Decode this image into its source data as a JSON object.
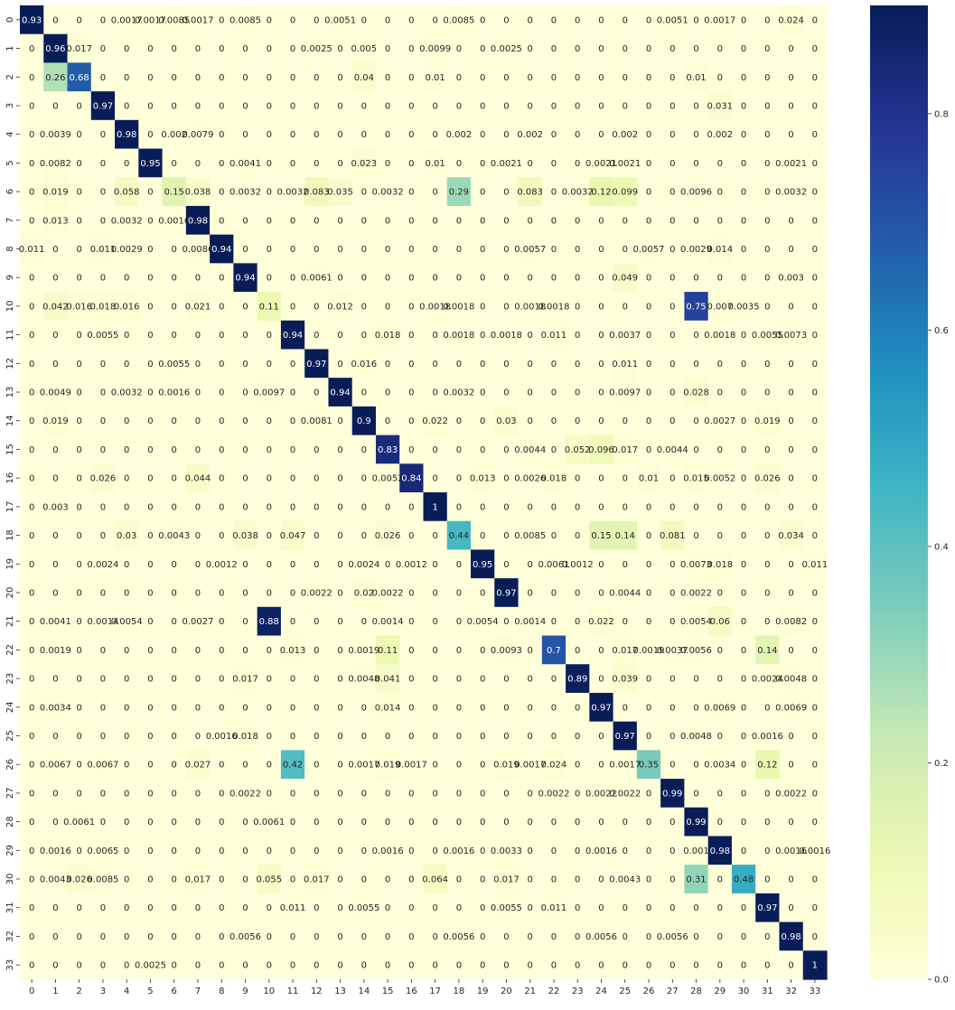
{
  "chart_data": {
    "type": "heatmap",
    "title": "",
    "xlabel": "",
    "ylabel": "",
    "colormap": "YlGnBu",
    "colorbar": {
      "vmin": 0.0,
      "vmax": 0.9,
      "ticks": [
        0.0,
        0.2,
        0.4,
        0.6,
        0.8
      ],
      "tick_labels": [
        "0.0",
        "0.2",
        "0.4",
        "0.6",
        "0.8"
      ]
    },
    "x_tick_labels": [
      "0",
      "1",
      "2",
      "3",
      "4",
      "5",
      "6",
      "7",
      "8",
      "9",
      "10",
      "11",
      "12",
      "13",
      "14",
      "15",
      "16",
      "17",
      "18",
      "19",
      "20",
      "21",
      "22",
      "23",
      "24",
      "25",
      "26",
      "27",
      "28",
      "29",
      "30",
      "31",
      "32",
      "33"
    ],
    "y_tick_labels": [
      "0",
      "1",
      "2",
      "3",
      "4",
      "5",
      "6",
      "7",
      "8",
      "9",
      "10",
      "11",
      "12",
      "13",
      "14",
      "15",
      "16",
      "17",
      "18",
      "19",
      "20",
      "21",
      "22",
      "23",
      "24",
      "25",
      "26",
      "27",
      "28",
      "29",
      "30",
      "31",
      "32",
      "33"
    ],
    "values": [
      [
        0.93,
        0,
        0,
        0,
        0.0017,
        0.0017,
        0.0085,
        0.0017,
        0,
        0.0085,
        0,
        0,
        0,
        0.0051,
        0,
        0,
        0,
        0,
        0.0085,
        0,
        0,
        0,
        0,
        0,
        0,
        0,
        0,
        0.0051,
        0,
        0.0017,
        0,
        0,
        0.024,
        0
      ],
      [
        0,
        0.96,
        0.017,
        0,
        0,
        0,
        0,
        0,
        0,
        0,
        0,
        0,
        0.0025,
        0,
        0.005,
        0,
        0,
        0.0099,
        0,
        0,
        0.0025,
        0,
        0,
        0,
        0,
        0,
        0,
        0,
        0,
        0,
        0,
        0,
        0,
        0
      ],
      [
        0,
        0.26,
        0.68,
        0,
        0,
        0,
        0,
        0,
        0,
        0,
        0,
        0,
        0,
        0,
        0.04,
        0,
        0,
        0.01,
        0,
        0,
        0,
        0,
        0,
        0,
        0,
        0,
        0,
        0,
        0.01,
        0,
        0,
        0,
        0,
        0
      ],
      [
        0,
        0,
        0,
        0.97,
        0,
        0,
        0,
        0,
        0,
        0,
        0,
        0,
        0,
        0,
        0,
        0,
        0,
        0,
        0,
        0,
        0,
        0,
        0,
        0,
        0,
        0,
        0,
        0,
        0,
        0.031,
        0,
        0,
        0,
        0
      ],
      [
        0,
        0.0039,
        0,
        0,
        0.98,
        0,
        0.002,
        0.0079,
        0,
        0,
        0,
        0,
        0,
        0,
        0,
        0,
        0,
        0,
        0.002,
        0,
        0,
        0.002,
        0,
        0,
        0,
        0.002,
        0,
        0,
        0,
        0.002,
        0,
        0,
        0,
        0
      ],
      [
        0,
        0.0082,
        0,
        0,
        0,
        0.95,
        0,
        0,
        0,
        0.0041,
        0,
        0,
        0,
        0,
        0.023,
        0,
        0,
        0.01,
        0,
        0,
        0.0021,
        0,
        0,
        0,
        0.0021,
        0.0021,
        0,
        0,
        0,
        0,
        0,
        0,
        0.0021,
        0
      ],
      [
        0,
        0.019,
        0,
        0,
        0.058,
        0,
        0.15,
        0.038,
        0,
        0.0032,
        0,
        0.0032,
        0.083,
        0.035,
        0,
        0.0032,
        0,
        0,
        0.29,
        0,
        0,
        0.083,
        0,
        0.0032,
        0.12,
        0.099,
        0,
        0,
        0.0096,
        0,
        0,
        0,
        0.0032,
        0
      ],
      [
        0,
        0.013,
        0,
        0,
        0.0032,
        0,
        0.0016,
        0.98,
        0,
        0,
        0,
        0,
        0,
        0,
        0,
        0,
        0,
        0,
        0,
        0,
        0,
        0,
        0,
        0,
        0,
        0,
        0,
        0,
        0,
        0,
        0,
        0,
        0,
        0
      ],
      [
        0.011,
        0,
        0,
        0.011,
        0.0029,
        0,
        0,
        0.0086,
        0.94,
        0,
        0,
        0,
        0,
        0,
        0,
        0,
        0,
        0,
        0,
        0,
        0,
        0.0057,
        0,
        0,
        0,
        0,
        0.0057,
        0,
        0.0029,
        0.014,
        0,
        0,
        0,
        0
      ],
      [
        0,
        0,
        0,
        0,
        0,
        0,
        0,
        0,
        0,
        0.94,
        0,
        0,
        0.0061,
        0,
        0,
        0,
        0,
        0,
        0,
        0,
        0,
        0,
        0,
        0,
        0,
        0.049,
        0,
        0,
        0,
        0,
        0,
        0,
        0.003,
        0
      ],
      [
        0,
        0.042,
        0.016,
        0.018,
        0.016,
        0,
        0,
        0.021,
        0,
        0,
        0.11,
        0,
        0,
        0.012,
        0,
        0,
        0,
        0.0018,
        0.0018,
        0,
        0,
        0.0018,
        0.0018,
        0,
        0,
        0,
        0,
        0,
        0.75,
        0.007,
        0.0035,
        0,
        0,
        0
      ],
      [
        0,
        0,
        0,
        0.0055,
        0,
        0,
        0,
        0,
        0,
        0,
        0,
        0.94,
        0,
        0,
        0,
        0.018,
        0,
        0,
        0.0018,
        0,
        0.0018,
        0,
        0.011,
        0,
        0,
        0.0037,
        0,
        0,
        0,
        0.0018,
        0,
        0.0055,
        0.0073,
        0
      ],
      [
        0,
        0,
        0,
        0,
        0,
        0,
        0.0055,
        0,
        0,
        0,
        0,
        0,
        0.97,
        0,
        0.016,
        0,
        0,
        0,
        0,
        0,
        0,
        0,
        0,
        0,
        0,
        0.011,
        0,
        0,
        0,
        0,
        0,
        0,
        0,
        0
      ],
      [
        0,
        0.0049,
        0,
        0,
        0.0032,
        0,
        0.0016,
        0,
        0,
        0,
        0.0097,
        0,
        0,
        0.94,
        0,
        0,
        0,
        0,
        0.0032,
        0,
        0,
        0,
        0,
        0,
        0,
        0.0097,
        0,
        0,
        0.028,
        0,
        0,
        0,
        0,
        0
      ],
      [
        0,
        0.019,
        0,
        0,
        0,
        0,
        0,
        0,
        0,
        0,
        0,
        0,
        0.0081,
        0,
        0.9,
        0,
        0,
        0.022,
        0,
        0,
        0.03,
        0,
        0,
        0,
        0,
        0,
        0,
        0,
        0,
        0.0027,
        0,
        0.019,
        0,
        0
      ],
      [
        0,
        0,
        0,
        0,
        0,
        0,
        0,
        0,
        0,
        0,
        0,
        0,
        0,
        0,
        0,
        0.83,
        0,
        0,
        0,
        0,
        0,
        0.0044,
        0,
        0.052,
        0.096,
        0.017,
        0,
        0.0044,
        0,
        0,
        0,
        0,
        0,
        0
      ],
      [
        0,
        0,
        0,
        0.026,
        0,
        0,
        0,
        0.044,
        0,
        0,
        0,
        0,
        0,
        0,
        0,
        0.0052,
        0.84,
        0,
        0,
        0.013,
        0,
        0.0026,
        0.018,
        0,
        0,
        0,
        0.01,
        0,
        0.015,
        0.0052,
        0,
        0.026,
        0,
        0
      ],
      [
        0,
        0.003,
        0,
        0,
        0,
        0,
        0,
        0,
        0,
        0,
        0,
        0,
        0,
        0,
        0,
        0,
        0,
        1,
        0,
        0,
        0,
        0,
        0,
        0,
        0,
        0,
        0,
        0,
        0,
        0,
        0,
        0,
        0,
        0
      ],
      [
        0,
        0,
        0,
        0,
        0.03,
        0,
        0.0043,
        0,
        0,
        0.038,
        0,
        0.047,
        0,
        0,
        0,
        0.026,
        0,
        0,
        0.44,
        0,
        0,
        0.0085,
        0,
        0,
        0.15,
        0.14,
        0,
        0.081,
        0,
        0,
        0,
        0,
        0.034,
        0
      ],
      [
        0,
        0,
        0,
        0.0024,
        0,
        0,
        0,
        0,
        0.0012,
        0,
        0,
        0,
        0,
        0,
        0.0024,
        0,
        0.0012,
        0,
        0,
        0.95,
        0,
        0,
        0.0061,
        0.0012,
        0,
        0,
        0,
        0,
        0.0073,
        0.018,
        0,
        0,
        0,
        0.011
      ],
      [
        0,
        0,
        0,
        0,
        0,
        0,
        0,
        0,
        0,
        0,
        0,
        0,
        0.0022,
        0,
        0.02,
        0.0022,
        0,
        0,
        0,
        0,
        0.97,
        0,
        0,
        0,
        0,
        0.0044,
        0,
        0,
        0.0022,
        0,
        0,
        0,
        0,
        0
      ],
      [
        0,
        0.0041,
        0,
        0.0014,
        0.0054,
        0,
        0,
        0.0027,
        0,
        0,
        0.88,
        0,
        0,
        0,
        0,
        0.0014,
        0,
        0,
        0,
        0.0054,
        0,
        0.0014,
        0,
        0,
        0.022,
        0,
        0,
        0,
        0.0054,
        0.06,
        0,
        0,
        0.0082,
        0
      ],
      [
        0,
        0.0019,
        0,
        0,
        0,
        0,
        0,
        0,
        0,
        0,
        0,
        0.013,
        0,
        0,
        0.0019,
        0.11,
        0,
        0,
        0,
        0,
        0.0093,
        0,
        0.7,
        0,
        0,
        0.017,
        0.0019,
        0.0037,
        0.0056,
        0,
        0,
        0.14,
        0,
        0
      ],
      [
        0,
        0,
        0,
        0,
        0,
        0,
        0,
        0,
        0,
        0.017,
        0,
        0,
        0,
        0,
        0.0048,
        0.041,
        0,
        0,
        0,
        0,
        0,
        0,
        0,
        0.89,
        0,
        0.039,
        0,
        0,
        0,
        0,
        0,
        0.0024,
        0.0048,
        0
      ],
      [
        0,
        0.0034,
        0,
        0,
        0,
        0,
        0,
        0,
        0,
        0,
        0,
        0,
        0,
        0,
        0,
        0.014,
        0,
        0,
        0,
        0,
        0,
        0,
        0,
        0,
        0.97,
        0,
        0,
        0,
        0,
        0.0069,
        0,
        0,
        0.0069,
        0
      ],
      [
        0,
        0,
        0,
        0,
        0,
        0,
        0,
        0,
        0.0016,
        0.018,
        0,
        0,
        0,
        0,
        0,
        0,
        0,
        0,
        0,
        0,
        0,
        0,
        0,
        0,
        0,
        0.97,
        0,
        0,
        0.0048,
        0,
        0,
        0.0016,
        0,
        0
      ],
      [
        0,
        0.0067,
        0,
        0.0067,
        0,
        0,
        0,
        0.027,
        0,
        0,
        0,
        0.42,
        0,
        0,
        0.0017,
        0.019,
        0.0017,
        0,
        0,
        0,
        0.019,
        0.0017,
        0.024,
        0,
        0,
        0.0017,
        0.35,
        0,
        0,
        0.0034,
        0,
        0.12,
        0,
        0
      ],
      [
        0,
        0,
        0,
        0,
        0,
        0,
        0,
        0,
        0,
        0.0022,
        0,
        0,
        0,
        0,
        0,
        0,
        0,
        0,
        0,
        0,
        0,
        0,
        0.0022,
        0,
        0.0022,
        0.0022,
        0,
        0.99,
        0,
        0,
        0,
        0,
        0.0022,
        0
      ],
      [
        0,
        0,
        0.0061,
        0,
        0,
        0,
        0,
        0,
        0,
        0,
        0.0061,
        0,
        0,
        0,
        0,
        0,
        0,
        0,
        0,
        0,
        0,
        0,
        0,
        0,
        0,
        0,
        0,
        0,
        0.99,
        0,
        0,
        0,
        0,
        0
      ],
      [
        0,
        0.0016,
        0,
        0.0065,
        0,
        0,
        0,
        0,
        0,
        0,
        0,
        0,
        0,
        0,
        0,
        0.0016,
        0,
        0,
        0.0016,
        0,
        0.0033,
        0,
        0,
        0,
        0.0016,
        0,
        0,
        0,
        0.001,
        0.98,
        0,
        0,
        0.0016,
        0.0016
      ],
      [
        0,
        0.0043,
        0.026,
        0.0085,
        0,
        0,
        0,
        0.017,
        0,
        0,
        0.055,
        0,
        0.017,
        0,
        0,
        0,
        0,
        0.064,
        0,
        0,
        0.017,
        0,
        0,
        0,
        0,
        0.0043,
        0,
        0,
        0.31,
        0,
        0.48,
        0,
        0,
        0
      ],
      [
        0,
        0,
        0,
        0,
        0,
        0,
        0,
        0,
        0,
        0,
        0,
        0.011,
        0,
        0,
        0.0055,
        0,
        0,
        0,
        0,
        0,
        0.0055,
        0,
        0.011,
        0,
        0,
        0,
        0,
        0,
        0,
        0,
        0,
        0.97,
        0,
        0
      ],
      [
        0,
        0,
        0,
        0,
        0,
        0,
        0,
        0,
        0,
        0.0056,
        0,
        0,
        0,
        0,
        0,
        0,
        0,
        0,
        0.0056,
        0,
        0,
        0,
        0,
        0,
        0.0056,
        0,
        0,
        0.0056,
        0,
        0,
        0,
        0,
        0.98,
        0
      ],
      [
        0,
        0,
        0,
        0,
        0,
        0.0025,
        0,
        0,
        0,
        0,
        0,
        0,
        0,
        0,
        0,
        0,
        0,
        0,
        0,
        0,
        0,
        0,
        0,
        0,
        0,
        0,
        0,
        0,
        0,
        0,
        0,
        0,
        0,
        1
      ]
    ]
  }
}
